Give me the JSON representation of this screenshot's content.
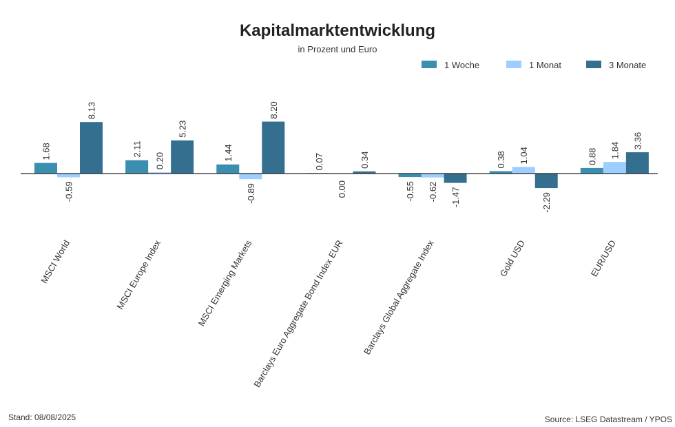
{
  "footer": {
    "stand": "Stand: 08/08/2025",
    "source": "Source: LSEG Datastream / YPOS"
  },
  "colors": {
    "series_1": "#3a8fb0",
    "series_2": "#9ccfff",
    "series_3": "#356f8f",
    "axis": "#222222"
  },
  "chart_data": {
    "type": "bar",
    "title": "Kapitalmarktentwicklung",
    "subtitle": "in Prozent und Euro",
    "legend_position": "top-right",
    "grid": false,
    "categories": [
      "MSCI World",
      "MSCI Europe Index",
      "MSCI Emerging Markets",
      "Barclays Euro Aggregate Bond Index EUR",
      "Barclays Global Aggregate Index",
      "Gold USD",
      "EUR/USD"
    ],
    "series": [
      {
        "name": "1 Woche",
        "values": [
          1.68,
          2.11,
          1.44,
          0.07,
          -0.55,
          0.38,
          0.88
        ],
        "labels": [
          "1.68",
          "2.11",
          "1.44",
          "0.07",
          "-0.55",
          "0.38",
          "0.88"
        ]
      },
      {
        "name": "1 Monat",
        "values": [
          -0.59,
          0.2,
          -0.89,
          0.0,
          -0.62,
          1.04,
          1.84
        ],
        "labels": [
          "-0.59",
          "0.20",
          "-0.89",
          "0.00",
          "-0.62",
          "1.04",
          "1.84"
        ]
      },
      {
        "name": "3 Monate",
        "values": [
          8.13,
          5.23,
          8.2,
          0.34,
          -1.47,
          -2.29,
          3.36
        ],
        "labels": [
          "8.13",
          "5.23",
          "8.20",
          "0.34",
          "-1.47",
          "-2.29",
          "3.36"
        ]
      }
    ]
  }
}
